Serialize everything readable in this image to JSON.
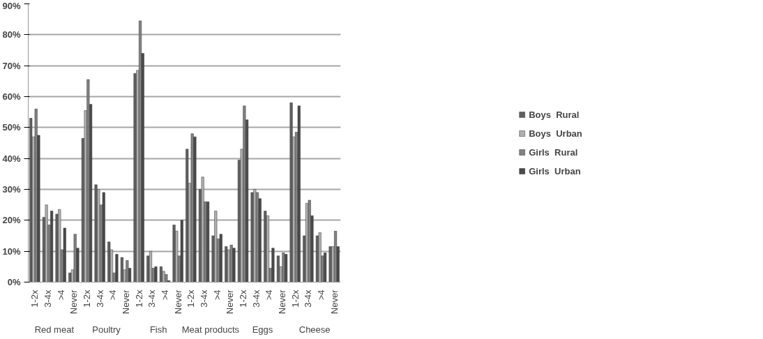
{
  "chart_data": {
    "type": "bar",
    "categories": [
      "1-2x",
      "3-4x",
      ">4",
      "Never",
      "1-2x",
      "3-4x",
      ">4",
      "Never",
      "1-2x",
      "3-4x",
      ">4",
      "Never",
      "1-2x",
      "3-4x",
      ">4",
      "Never",
      "1-2x",
      "3-4x",
      ">4",
      "Never",
      "1-2x",
      "3-4x",
      ">4",
      "Never"
    ],
    "annotations": [
      "Red meat",
      "Poultry",
      "Fish",
      "Meat products",
      "Eggs",
      "Cheese"
    ],
    "series": [
      {
        "name": "Boys  Rural",
        "color": "#606060",
        "values": [
          53,
          21,
          22,
          3,
          46.5,
          31.5,
          13,
          8,
          67.5,
          8.5,
          5,
          18.5,
          43,
          30,
          15,
          11.5,
          39.5,
          29,
          23,
          8.5,
          58,
          15,
          15,
          11.5
        ]
      },
      {
        "name": "Boys  Urban",
        "color": "#b0b0b0",
        "values": [
          47,
          25,
          23.5,
          4,
          55.5,
          30,
          10.5,
          4,
          68.5,
          10,
          3.5,
          16.5,
          32,
          34,
          23,
          10.5,
          43,
          30,
          21.5,
          5,
          47,
          25.5,
          16,
          11.5
        ]
      },
      {
        "name": "Girls  Rural",
        "color": "#828282",
        "values": [
          56,
          18.5,
          10.5,
          15.5,
          65.5,
          25,
          3,
          7,
          84.5,
          4.5,
          2.5,
          8.5,
          48,
          26,
          14,
          12,
          57,
          29,
          4.5,
          9.5,
          48.5,
          26.5,
          8.5,
          16.5
        ]
      },
      {
        "name": "Girls  Urban",
        "color": "#4a4a4a",
        "values": [
          47.5,
          23,
          17.5,
          11,
          57.5,
          29,
          9,
          4.5,
          74,
          5,
          0.5,
          20,
          47,
          26,
          15.5,
          11,
          52.5,
          27,
          11,
          9,
          57,
          21.5,
          9.5,
          11.5
        ]
      }
    ],
    "ylim": [
      0,
      90
    ],
    "yticks": [
      {
        "value": 0,
        "label": "0%"
      },
      {
        "value": 10,
        "label": "10%"
      },
      {
        "value": 20,
        "label": "20%"
      },
      {
        "value": 30,
        "label": "30%"
      },
      {
        "value": 40,
        "label": "40%"
      },
      {
        "value": 50,
        "label": "50%"
      },
      {
        "value": 60,
        "label": "60%"
      },
      {
        "value": 70,
        "label": "70%"
      },
      {
        "value": 80,
        "label": "80%"
      },
      {
        "value": 90,
        "label": "90%"
      }
    ],
    "grid": "y",
    "legend": "right"
  }
}
